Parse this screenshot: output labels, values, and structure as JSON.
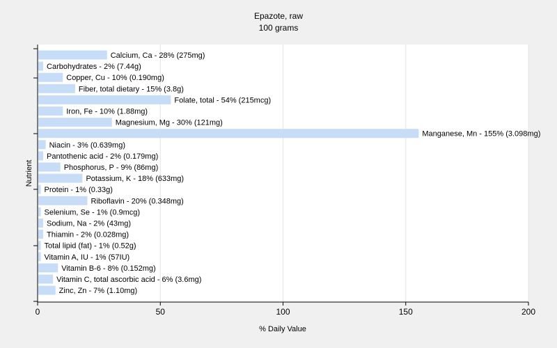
{
  "chart_data": {
    "type": "bar",
    "orientation": "horizontal",
    "title": "Epazote, raw",
    "subtitle": "100 grams",
    "xlabel": "% Daily Value",
    "ylabel": "Nutrient",
    "xlim": [
      0,
      200
    ],
    "xticks": [
      0,
      50,
      100,
      150,
      200
    ],
    "grid": true,
    "bar_color": "#c6dcf7",
    "categories": [
      "Calcium, Ca",
      "Carbohydrates",
      "Copper, Cu",
      "Fiber, total dietary",
      "Folate, total",
      "Iron, Fe",
      "Magnesium, Mg",
      "Manganese, Mn",
      "Niacin",
      "Pantothenic acid",
      "Phosphorus, P",
      "Potassium, K",
      "Protein",
      "Riboflavin",
      "Selenium, Se",
      "Sodium, Na",
      "Thiamin",
      "Total lipid (fat)",
      "Vitamin A, IU",
      "Vitamin B-6",
      "Vitamin C, total ascorbic acid",
      "Zinc, Zn"
    ],
    "values": [
      28,
      2,
      10,
      15,
      54,
      10,
      30,
      155,
      3,
      2,
      9,
      18,
      1,
      20,
      1,
      2,
      2,
      1,
      1,
      8,
      6,
      7
    ],
    "labels": [
      "Calcium, Ca - 28% (275mg)",
      "Carbohydrates - 2% (7.44g)",
      "Copper, Cu - 10% (0.190mg)",
      "Fiber, total dietary - 15% (3.8g)",
      "Folate, total - 54% (215mcg)",
      "Iron, Fe - 10% (1.88mg)",
      "Magnesium, Mg - 30% (121mg)",
      "Manganese, Mn - 155% (3.098mg)",
      "Niacin - 3% (0.639mg)",
      "Pantothenic acid - 2% (0.179mg)",
      "Phosphorus, P - 9% (86mg)",
      "Potassium, K - 18% (633mg)",
      "Protein - 1% (0.33g)",
      "Riboflavin - 20% (0.348mg)",
      "Selenium, Se - 1% (0.9mcg)",
      "Sodium, Na - 2% (43mg)",
      "Thiamin - 2% (0.028mg)",
      "Total lipid (fat) - 1% (0.52g)",
      "Vitamin A, IU - 1% (57IU)",
      "Vitamin B-6 - 8% (0.152mg)",
      "Vitamin C, total ascorbic acid - 6% (3.6mg)",
      "Zinc, Zn - 7% (1.10mg)"
    ]
  }
}
